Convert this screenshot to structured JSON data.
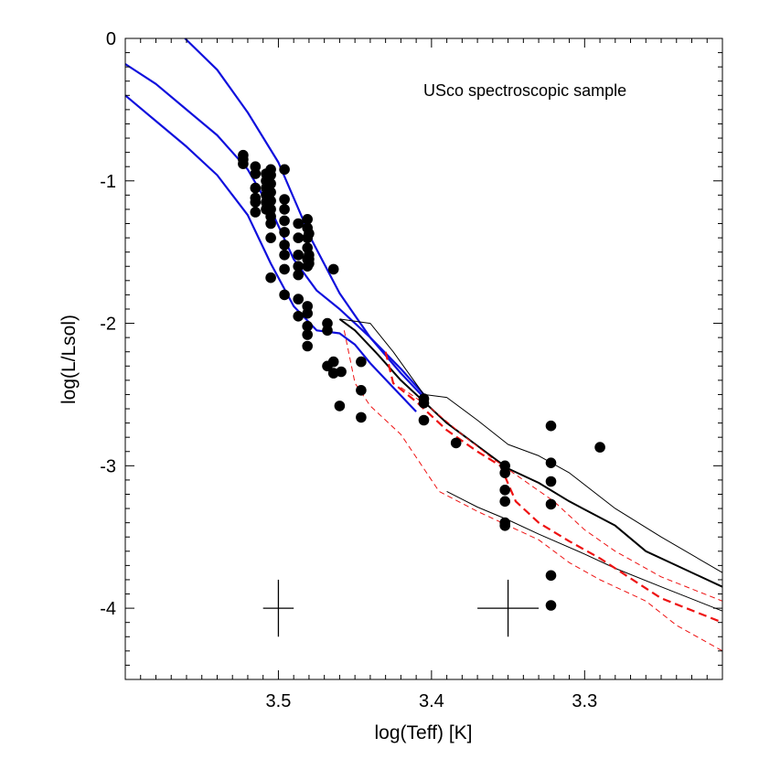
{
  "chart_data": {
    "type": "scatter",
    "xlabel": "log(Teff) [K]",
    "ylabel": "log(L/Lsol)",
    "annotation": "USco spectroscopic sample",
    "xlim": [
      3.6,
      3.21
    ],
    "ylim": [
      -4.5,
      0
    ],
    "x_ticks": [
      3.5,
      3.4,
      3.3
    ],
    "y_ticks": [
      0,
      -1,
      -2,
      -3,
      -4
    ],
    "x_minor_step": 0.01,
    "y_minor_step": 0.1,
    "colors": {
      "blue": "#1010dd",
      "red": "#ee1111",
      "black": "#000000"
    },
    "points": [
      [
        3.523,
        -0.82
      ],
      [
        3.523,
        -0.85
      ],
      [
        3.523,
        -0.88
      ],
      [
        3.515,
        -0.9
      ],
      [
        3.515,
        -0.95
      ],
      [
        3.515,
        -1.05
      ],
      [
        3.515,
        -1.12
      ],
      [
        3.515,
        -1.15
      ],
      [
        3.515,
        -1.22
      ],
      [
        3.508,
        -0.95
      ],
      [
        3.508,
        -1.0
      ],
      [
        3.508,
        -1.05
      ],
      [
        3.508,
        -1.1
      ],
      [
        3.508,
        -1.15
      ],
      [
        3.508,
        -1.2
      ],
      [
        3.505,
        -0.92
      ],
      [
        3.505,
        -0.96
      ],
      [
        3.505,
        -1.02
      ],
      [
        3.505,
        -1.08
      ],
      [
        3.505,
        -1.14
      ],
      [
        3.505,
        -1.2
      ],
      [
        3.505,
        -1.25
      ],
      [
        3.505,
        -1.3
      ],
      [
        3.505,
        -1.4
      ],
      [
        3.505,
        -1.68
      ],
      [
        3.496,
        -0.92
      ],
      [
        3.496,
        -1.13
      ],
      [
        3.496,
        -1.2
      ],
      [
        3.496,
        -1.28
      ],
      [
        3.496,
        -1.36
      ],
      [
        3.496,
        -1.45
      ],
      [
        3.496,
        -1.52
      ],
      [
        3.496,
        -1.62
      ],
      [
        3.496,
        -1.8
      ],
      [
        3.487,
        -1.3
      ],
      [
        3.487,
        -1.4
      ],
      [
        3.487,
        -1.52
      ],
      [
        3.487,
        -1.6
      ],
      [
        3.487,
        -1.66
      ],
      [
        3.487,
        -1.83
      ],
      [
        3.487,
        -1.95
      ],
      [
        3.481,
        -1.27
      ],
      [
        3.481,
        -1.33
      ],
      [
        3.481,
        -1.4
      ],
      [
        3.481,
        -1.47
      ],
      [
        3.481,
        -1.55
      ],
      [
        3.481,
        -1.6
      ],
      [
        3.481,
        -1.88
      ],
      [
        3.481,
        -1.93
      ],
      [
        3.481,
        -2.02
      ],
      [
        3.481,
        -2.08
      ],
      [
        3.481,
        -2.16
      ],
      [
        3.48,
        -1.37
      ],
      [
        3.48,
        -1.52
      ],
      [
        3.48,
        -1.55
      ],
      [
        3.48,
        -1.58
      ],
      [
        3.464,
        -1.62
      ],
      [
        3.468,
        -2.0
      ],
      [
        3.468,
        -2.05
      ],
      [
        3.468,
        -2.3
      ],
      [
        3.464,
        -2.27
      ],
      [
        3.464,
        -2.35
      ],
      [
        3.459,
        -2.34
      ],
      [
        3.46,
        -2.58
      ],
      [
        3.446,
        -2.27
      ],
      [
        3.446,
        -2.47
      ],
      [
        3.446,
        -2.66
      ],
      [
        3.405,
        -2.53
      ],
      [
        3.405,
        -2.56
      ],
      [
        3.405,
        -2.68
      ],
      [
        3.384,
        -2.84
      ],
      [
        3.352,
        -3.0
      ],
      [
        3.352,
        -3.05
      ],
      [
        3.352,
        -3.17
      ],
      [
        3.352,
        -3.25
      ],
      [
        3.352,
        -3.4
      ],
      [
        3.352,
        -3.42
      ],
      [
        3.322,
        -2.72
      ],
      [
        3.322,
        -2.98
      ],
      [
        3.322,
        -3.11
      ],
      [
        3.322,
        -3.27
      ],
      [
        3.322,
        -3.77
      ],
      [
        3.322,
        -3.98
      ],
      [
        3.29,
        -2.87
      ]
    ],
    "error_bars": [
      {
        "x": 3.5,
        "y": -4.0,
        "dx": 0.01,
        "dy": 0.2
      },
      {
        "x": 3.35,
        "y": -4.0,
        "dx": 0.02,
        "dy": 0.2
      }
    ],
    "series": [
      {
        "color": "blue",
        "dash": "solid",
        "width": 2.2,
        "points": [
          [
            3.561,
            0.0
          ],
          [
            3.54,
            -0.22
          ],
          [
            3.52,
            -0.52
          ],
          [
            3.5,
            -0.87
          ],
          [
            3.49,
            -1.12
          ],
          [
            3.478,
            -1.42
          ],
          [
            3.46,
            -1.79
          ],
          [
            3.44,
            -2.1
          ],
          [
            3.42,
            -2.35
          ],
          [
            3.405,
            -2.52
          ]
        ]
      },
      {
        "color": "blue",
        "dash": "solid",
        "width": 2.2,
        "points": [
          [
            3.6,
            -0.18
          ],
          [
            3.58,
            -0.32
          ],
          [
            3.56,
            -0.5
          ],
          [
            3.54,
            -0.68
          ],
          [
            3.52,
            -0.92
          ],
          [
            3.505,
            -1.2
          ],
          [
            3.49,
            -1.55
          ],
          [
            3.475,
            -1.77
          ],
          [
            3.46,
            -1.9
          ],
          [
            3.44,
            -2.1
          ],
          [
            3.42,
            -2.32
          ],
          [
            3.405,
            -2.5
          ]
        ]
      },
      {
        "color": "blue",
        "dash": "solid",
        "width": 2.2,
        "points": [
          [
            3.6,
            -0.4
          ],
          [
            3.58,
            -0.58
          ],
          [
            3.56,
            -0.76
          ],
          [
            3.54,
            -0.96
          ],
          [
            3.52,
            -1.24
          ],
          [
            3.505,
            -1.58
          ],
          [
            3.49,
            -1.88
          ],
          [
            3.475,
            -2.05
          ],
          [
            3.46,
            -2.07
          ],
          [
            3.45,
            -2.15
          ],
          [
            3.44,
            -2.28
          ],
          [
            3.425,
            -2.45
          ],
          [
            3.41,
            -2.62
          ]
        ]
      },
      {
        "color": "black",
        "dash": "solid",
        "width": 1.0,
        "points": [
          [
            3.46,
            -1.97
          ],
          [
            3.44,
            -2.0
          ],
          [
            3.425,
            -2.2
          ],
          [
            3.405,
            -2.5
          ],
          [
            3.39,
            -2.52
          ],
          [
            3.37,
            -2.68
          ],
          [
            3.35,
            -2.85
          ],
          [
            3.33,
            -2.93
          ],
          [
            3.31,
            -3.05
          ],
          [
            3.28,
            -3.3
          ],
          [
            3.25,
            -3.5
          ],
          [
            3.21,
            -3.75
          ]
        ]
      },
      {
        "color": "black",
        "dash": "solid",
        "width": 2.0,
        "points": [
          [
            3.46,
            -1.97
          ],
          [
            3.45,
            -2.05
          ],
          [
            3.435,
            -2.22
          ],
          [
            3.42,
            -2.4
          ],
          [
            3.405,
            -2.55
          ],
          [
            3.39,
            -2.7
          ],
          [
            3.37,
            -2.86
          ],
          [
            3.35,
            -3.02
          ],
          [
            3.33,
            -3.12
          ],
          [
            3.31,
            -3.25
          ],
          [
            3.28,
            -3.42
          ],
          [
            3.26,
            -3.6
          ],
          [
            3.24,
            -3.7
          ],
          [
            3.21,
            -3.85
          ]
        ]
      },
      {
        "color": "black",
        "dash": "solid",
        "width": 1.0,
        "points": [
          [
            3.39,
            -3.18
          ],
          [
            3.37,
            -3.29
          ],
          [
            3.35,
            -3.38
          ],
          [
            3.33,
            -3.48
          ],
          [
            3.3,
            -3.62
          ],
          [
            3.28,
            -3.72
          ],
          [
            3.25,
            -3.85
          ],
          [
            3.21,
            -4.02
          ]
        ]
      },
      {
        "color": "red",
        "dash": "dashed",
        "width": 2.2,
        "points": [
          [
            3.43,
            -2.2
          ],
          [
            3.425,
            -2.42
          ],
          [
            3.41,
            -2.55
          ],
          [
            3.39,
            -2.75
          ],
          [
            3.37,
            -2.9
          ],
          [
            3.355,
            -3.0
          ],
          [
            3.345,
            -3.25
          ],
          [
            3.33,
            -3.4
          ],
          [
            3.31,
            -3.53
          ],
          [
            3.29,
            -3.65
          ],
          [
            3.27,
            -3.79
          ],
          [
            3.25,
            -3.93
          ],
          [
            3.21,
            -4.1
          ]
        ]
      },
      {
        "color": "red",
        "dash": "dashed",
        "width": 1.0,
        "points": [
          [
            3.457,
            -2.05
          ],
          [
            3.45,
            -2.42
          ],
          [
            3.44,
            -2.58
          ],
          [
            3.42,
            -2.78
          ],
          [
            3.395,
            -3.18
          ],
          [
            3.37,
            -3.32
          ],
          [
            3.35,
            -3.42
          ],
          [
            3.33,
            -3.52
          ],
          [
            3.31,
            -3.68
          ],
          [
            3.29,
            -3.8
          ],
          [
            3.26,
            -3.95
          ],
          [
            3.24,
            -4.12
          ],
          [
            3.21,
            -4.3
          ]
        ]
      },
      {
        "color": "red",
        "dash": "dashed",
        "width": 1.0,
        "points": [
          [
            3.42,
            -2.45
          ],
          [
            3.4,
            -2.6
          ],
          [
            3.38,
            -2.78
          ],
          [
            3.36,
            -2.95
          ],
          [
            3.34,
            -3.1
          ],
          [
            3.32,
            -3.25
          ],
          [
            3.3,
            -3.45
          ],
          [
            3.28,
            -3.6
          ],
          [
            3.25,
            -3.78
          ],
          [
            3.21,
            -3.95
          ]
        ]
      }
    ]
  }
}
